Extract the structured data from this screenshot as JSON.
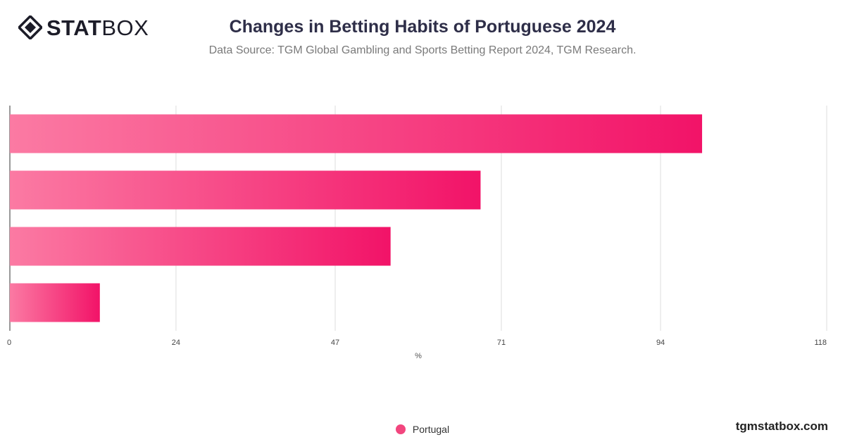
{
  "header": {
    "logo_bold": "STAT",
    "logo_thin": "BOX",
    "title": "Changes in Betting Habits of Portuguese 2024",
    "subtitle": "Data Source: TGM Global Gambling and Sports Betting Report 2024, TGM Research."
  },
  "footer": {
    "watermark": "tgmstatbox.com"
  },
  "colors": {
    "bar_start": "#fb7aa3",
    "bar_end": "#f21368",
    "legend": "#f2467e",
    "grid": "#dddddd"
  },
  "chart_data": {
    "type": "bar",
    "orientation": "horizontal",
    "categories": [
      "",
      "",
      "",
      ""
    ],
    "series": [
      {
        "name": "Portugal",
        "values": [
          100,
          68,
          55,
          13
        ]
      }
    ],
    "xlabel": "%",
    "ylabel": "",
    "xlim": [
      0,
      118
    ],
    "xticks": [
      0,
      24,
      47,
      71,
      94,
      118
    ],
    "grid": true,
    "legend_position": "bottom"
  }
}
